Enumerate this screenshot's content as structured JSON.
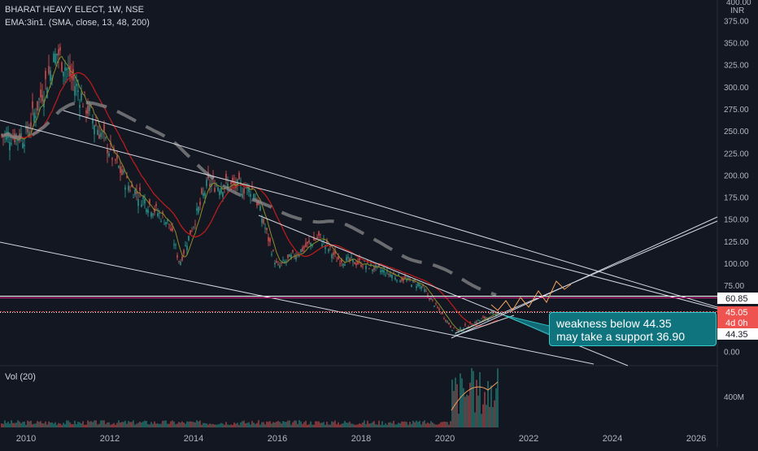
{
  "header": {
    "symbol_line": "BHARAT HEAVY ELECT, 1W, NSE",
    "indicator_line": "EMA:3in1. (SMA, close, 13, 48, 200)"
  },
  "volume_panel": {
    "label": "Vol (20)",
    "axis_label": "400M"
  },
  "price_axis": {
    "unit": "INR",
    "top_label": "400.00",
    "ticks": [
      "375.00",
      "350.00",
      "325.00",
      "300.00",
      "275.00",
      "250.00",
      "225.00",
      "200.00",
      "175.00",
      "150.00",
      "125.00",
      "100.00",
      "75.00",
      "0.00"
    ]
  },
  "price_tags": {
    "resistance": "60.85",
    "last_price": "45.05",
    "countdown": "4d 0h",
    "support": "44.35"
  },
  "callout": {
    "line1": "weakness below 44.35",
    "line2": "may take a support 36.90"
  },
  "colors": {
    "background": "#131722",
    "up": "#26a69a",
    "down": "#ef5350",
    "ema_red": "#b71c1c",
    "ema_olive": "#8d8d2a",
    "ema_gray": "#8a8a8a",
    "trendline": "#d1d4dc",
    "resistance_line": "#e0218a",
    "projection": "#f5a25d",
    "callout_bg": "#10747f"
  },
  "chart_data": {
    "type": "candlestick",
    "timeframe": "1W",
    "x_ticks": [
      "2010",
      "2012",
      "2014",
      "2016",
      "2018",
      "2020",
      "2022",
      "2024",
      "2026"
    ],
    "y_range": [
      0,
      400
    ],
    "key_points": [
      {
        "date": "2010-01",
        "close": 245
      },
      {
        "date": "2010-10",
        "close": 340
      },
      {
        "date": "2011-06",
        "close": 280
      },
      {
        "date": "2012-06",
        "close": 190
      },
      {
        "date": "2013-06",
        "close": 145
      },
      {
        "date": "2013-09",
        "close": 100
      },
      {
        "date": "2014-05",
        "close": 190
      },
      {
        "date": "2015-06",
        "close": 185
      },
      {
        "date": "2016-01",
        "close": 95
      },
      {
        "date": "2017-01",
        "close": 130
      },
      {
        "date": "2017-06",
        "close": 105
      },
      {
        "date": "2018-01",
        "close": 100
      },
      {
        "date": "2019-06",
        "close": 75
      },
      {
        "date": "2020-04",
        "close": 22
      },
      {
        "date": "2021-04",
        "close": 45
      }
    ],
    "levels": [
      {
        "name": "resistance",
        "value": 60.85
      },
      {
        "name": "last",
        "value": 45.05
      },
      {
        "name": "support",
        "value": 44.35
      }
    ]
  }
}
